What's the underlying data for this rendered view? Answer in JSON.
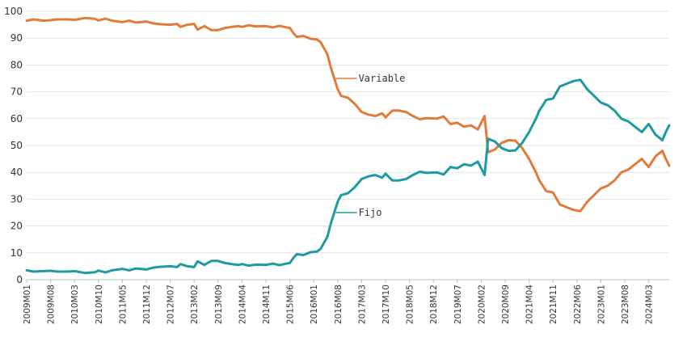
{
  "chart_data": {
    "type": "line",
    "title": "",
    "xlabel": "",
    "ylabel": "",
    "ylim": [
      0,
      100
    ],
    "yticks": [
      0,
      10,
      20,
      30,
      40,
      50,
      60,
      70,
      80,
      90,
      100
    ],
    "grid": "horizontal",
    "legend": "inline labels",
    "x_start": "2009M01",
    "x_end": "2024M09",
    "x_tick_labels": [
      "2009M01",
      "2009M08",
      "2010M03",
      "2010M10",
      "2011M05",
      "2011M12",
      "2012M07",
      "2013M02",
      "2013M09",
      "2014M04",
      "2014M11",
      "2015M06",
      "2016M01",
      "2016M08",
      "2017M03",
      "2017M10",
      "2018M05",
      "2018M12",
      "2019M07",
      "2020M02",
      "2020M09",
      "2021M04",
      "2021M11",
      "2022M06",
      "2023M01",
      "2023M08",
      "2024M03"
    ],
    "series": [
      {
        "name": "Variable",
        "color": "#e07b3a",
        "points": [
          [
            "2009M01",
            96.5
          ],
          [
            "2009M03",
            97
          ],
          [
            "2009M06",
            96.5
          ],
          [
            "2009M08",
            96.7
          ],
          [
            "2009M10",
            97
          ],
          [
            "2010M01",
            97
          ],
          [
            "2010M03",
            96.8
          ],
          [
            "2010M06",
            97.5
          ],
          [
            "2010M09",
            97.2
          ],
          [
            "2010M10",
            96.6
          ],
          [
            "2010M12",
            97.3
          ],
          [
            "2011M02",
            96.5
          ],
          [
            "2011M05",
            96
          ],
          [
            "2011M07",
            96.5
          ],
          [
            "2011M09",
            95.8
          ],
          [
            "2011M12",
            96.2
          ],
          [
            "2012M02",
            95.5
          ],
          [
            "2012M04",
            95.2
          ],
          [
            "2012M07",
            95
          ],
          [
            "2012M09",
            95.3
          ],
          [
            "2012M10",
            94.2
          ],
          [
            "2012M12",
            95
          ],
          [
            "2013M02",
            95.3
          ],
          [
            "2013M03",
            93.2
          ],
          [
            "2013M05",
            94.5
          ],
          [
            "2013M07",
            93
          ],
          [
            "2013M09",
            93
          ],
          [
            "2013M11",
            93.8
          ],
          [
            "2014M01",
            94.2
          ],
          [
            "2014M03",
            94.5
          ],
          [
            "2014M04",
            94.2
          ],
          [
            "2014M06",
            94.8
          ],
          [
            "2014M08",
            94.4
          ],
          [
            "2014M11",
            94.5
          ],
          [
            "2015M01",
            94
          ],
          [
            "2015M03",
            94.6
          ],
          [
            "2015M05",
            94
          ],
          [
            "2015M06",
            93.8
          ],
          [
            "2015M07",
            92
          ],
          [
            "2015M08",
            90.5
          ],
          [
            "2015M10",
            90.8
          ],
          [
            "2015M12",
            89.8
          ],
          [
            "2016M02",
            89.5
          ],
          [
            "2016M03",
            88.5
          ],
          [
            "2016M05",
            84
          ],
          [
            "2016M06",
            79
          ],
          [
            "2016M07",
            75
          ],
          [
            "2016M08",
            71
          ],
          [
            "2016M09",
            68.5
          ],
          [
            "2016M11",
            67.8
          ],
          [
            "2017M01",
            65.5
          ],
          [
            "2017M03",
            62.5
          ],
          [
            "2017M05",
            61.5
          ],
          [
            "2017M07",
            61
          ],
          [
            "2017M09",
            62
          ],
          [
            "2017M10",
            60.5
          ],
          [
            "2017M12",
            63
          ],
          [
            "2018M02",
            63
          ],
          [
            "2018M04",
            62.5
          ],
          [
            "2018M06",
            61
          ],
          [
            "2018M08",
            59.8
          ],
          [
            "2018M10",
            60.2
          ],
          [
            "2019M01",
            60
          ],
          [
            "2019M03",
            60.8
          ],
          [
            "2019M05",
            58
          ],
          [
            "2019M07",
            58.5
          ],
          [
            "2019M09",
            57
          ],
          [
            "2019M11",
            57.5
          ],
          [
            "2020M01",
            56
          ],
          [
            "2020M03",
            61
          ],
          [
            "2020M04",
            47.5
          ],
          [
            "2020M06",
            48.5
          ],
          [
            "2020M08",
            51
          ],
          [
            "2020M10",
            52
          ],
          [
            "2020M12",
            51.8
          ],
          [
            "2021M02",
            49
          ],
          [
            "2021M04",
            45
          ],
          [
            "2021M06",
            40
          ],
          [
            "2021M07",
            37
          ],
          [
            "2021M09",
            33
          ],
          [
            "2021M11",
            32.5
          ],
          [
            "2022M01",
            28
          ],
          [
            "2022M03",
            27
          ],
          [
            "2022M05",
            26
          ],
          [
            "2022M07",
            25.5
          ],
          [
            "2022M09",
            29
          ],
          [
            "2022M11",
            31.5
          ],
          [
            "2023M01",
            34
          ],
          [
            "2023M03",
            35
          ],
          [
            "2023M05",
            37
          ],
          [
            "2023M07",
            40
          ],
          [
            "2023M09",
            41
          ],
          [
            "2023M11",
            43
          ],
          [
            "2024M01",
            45
          ],
          [
            "2024M03",
            42
          ],
          [
            "2024M05",
            46
          ],
          [
            "2024M07",
            48
          ],
          [
            "2024M08",
            45
          ],
          [
            "2024M09",
            42.5
          ]
        ]
      },
      {
        "name": "Fijo",
        "color": "#1e9aa0",
        "points": [
          [
            "2009M01",
            3.5
          ],
          [
            "2009M03",
            3
          ],
          [
            "2009M06",
            3.2
          ],
          [
            "2009M08",
            3.3
          ],
          [
            "2009M10",
            3
          ],
          [
            "2010M01",
            3
          ],
          [
            "2010M03",
            3.2
          ],
          [
            "2010M06",
            2.5
          ],
          [
            "2010M09",
            2.8
          ],
          [
            "2010M10",
            3.4
          ],
          [
            "2010M12",
            2.7
          ],
          [
            "2011M02",
            3.5
          ],
          [
            "2011M05",
            4
          ],
          [
            "2011M07",
            3.5
          ],
          [
            "2011M09",
            4.2
          ],
          [
            "2011M12",
            3.8
          ],
          [
            "2012M02",
            4.5
          ],
          [
            "2012M04",
            4.8
          ],
          [
            "2012M07",
            5
          ],
          [
            "2012M09",
            4.7
          ],
          [
            "2012M10",
            5.8
          ],
          [
            "2012M12",
            5
          ],
          [
            "2013M02",
            4.7
          ],
          [
            "2013M03",
            6.8
          ],
          [
            "2013M05",
            5.5
          ],
          [
            "2013M07",
            7
          ],
          [
            "2013M09",
            7
          ],
          [
            "2013M11",
            6.2
          ],
          [
            "2014M01",
            5.8
          ],
          [
            "2014M03",
            5.5
          ],
          [
            "2014M04",
            5.8
          ],
          [
            "2014M06",
            5.2
          ],
          [
            "2014M08",
            5.6
          ],
          [
            "2014M11",
            5.5
          ],
          [
            "2015M01",
            6
          ],
          [
            "2015M03",
            5.4
          ],
          [
            "2015M05",
            6
          ],
          [
            "2015M06",
            6.2
          ],
          [
            "2015M07",
            8
          ],
          [
            "2015M08",
            9.5
          ],
          [
            "2015M10",
            9.2
          ],
          [
            "2015M12",
            10.2
          ],
          [
            "2016M02",
            10.5
          ],
          [
            "2016M03",
            11.5
          ],
          [
            "2016M05",
            16
          ],
          [
            "2016M06",
            21
          ],
          [
            "2016M07",
            25
          ],
          [
            "2016M08",
            29
          ],
          [
            "2016M09",
            31.5
          ],
          [
            "2016M11",
            32.2
          ],
          [
            "2017M01",
            34.5
          ],
          [
            "2017M03",
            37.5
          ],
          [
            "2017M05",
            38.5
          ],
          [
            "2017M07",
            39
          ],
          [
            "2017M09",
            38
          ],
          [
            "2017M10",
            39.5
          ],
          [
            "2017M12",
            37
          ],
          [
            "2018M02",
            37
          ],
          [
            "2018M04",
            37.5
          ],
          [
            "2018M06",
            39
          ],
          [
            "2018M08",
            40.2
          ],
          [
            "2018M10",
            39.8
          ],
          [
            "2019M01",
            40
          ],
          [
            "2019M03",
            39.2
          ],
          [
            "2019M05",
            42
          ],
          [
            "2019M07",
            41.5
          ],
          [
            "2019M09",
            43
          ],
          [
            "2019M11",
            42.5
          ],
          [
            "2020M01",
            44
          ],
          [
            "2020M03",
            39
          ],
          [
            "2020M04",
            52.5
          ],
          [
            "2020M06",
            51.5
          ],
          [
            "2020M08",
            49
          ],
          [
            "2020M10",
            48
          ],
          [
            "2020M12",
            48.2
          ],
          [
            "2021M02",
            51
          ],
          [
            "2021M04",
            55
          ],
          [
            "2021M06",
            60
          ],
          [
            "2021M07",
            63
          ],
          [
            "2021M09",
            67
          ],
          [
            "2021M11",
            67.5
          ],
          [
            "2022M01",
            72
          ],
          [
            "2022M03",
            73
          ],
          [
            "2022M05",
            74
          ],
          [
            "2022M07",
            74.5
          ],
          [
            "2022M09",
            71
          ],
          [
            "2022M11",
            68.5
          ],
          [
            "2023M01",
            66
          ],
          [
            "2023M03",
            65
          ],
          [
            "2023M05",
            63
          ],
          [
            "2023M07",
            60
          ],
          [
            "2023M09",
            59
          ],
          [
            "2023M11",
            57
          ],
          [
            "2024M01",
            55
          ],
          [
            "2024M03",
            58
          ],
          [
            "2024M05",
            54
          ],
          [
            "2024M07",
            52
          ],
          [
            "2024M08",
            55
          ],
          [
            "2024M09",
            57.5
          ]
        ]
      }
    ],
    "annotations": [
      {
        "text": "Variable",
        "series": "Variable",
        "at": "2016M07"
      },
      {
        "text": "Fijo",
        "series": "Fijo",
        "at": "2016M07"
      }
    ]
  }
}
